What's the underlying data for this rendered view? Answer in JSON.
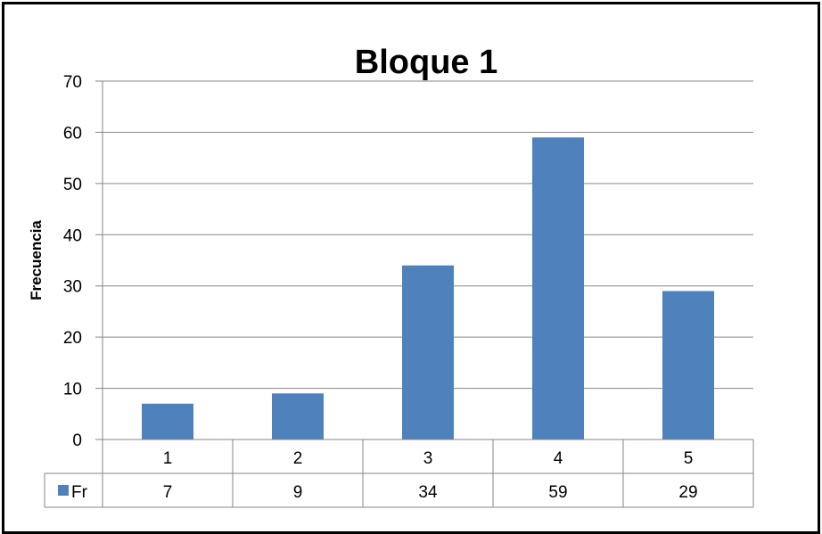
{
  "chart_data": {
    "type": "bar",
    "title": "Bloque 1",
    "xlabel": "",
    "ylabel": "Frecuencia",
    "categories": [
      "1",
      "2",
      "3",
      "4",
      "5"
    ],
    "series": [
      {
        "name": "Fr",
        "values": [
          7,
          9,
          34,
          59,
          29
        ],
        "color": "#4F81BD"
      }
    ],
    "ylim": [
      0,
      70
    ],
    "yticks": [
      0,
      10,
      20,
      30,
      40,
      50,
      60,
      70
    ],
    "grid": true,
    "legend": "data-table",
    "data_table": true
  }
}
